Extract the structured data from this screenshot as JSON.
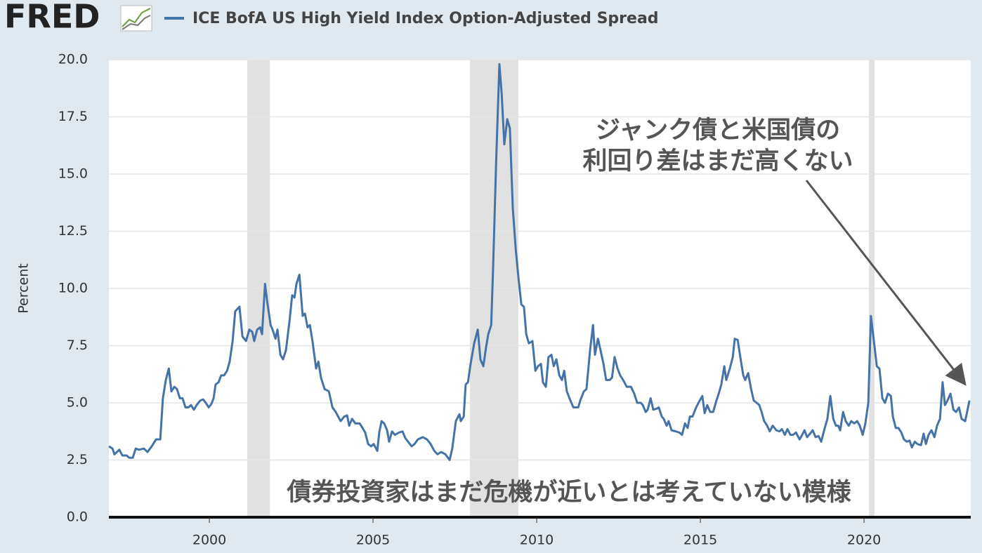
{
  "logo": "FRED",
  "chart_data": {
    "type": "line",
    "y_label": "Percent",
    "annotations": [
      "ジャンク債と米国債の",
      "利回り差はまだ高くない",
      "債券投資家はまだ危機が近いとは考えていない模様"
    ],
    "x": [
      1996.93,
      1997.04,
      1997.1,
      1997.25,
      1997.34,
      1997.47,
      1997.55,
      1997.66,
      1997.75,
      1997.85,
      1998.0,
      1998.11,
      1998.24,
      1998.37,
      1998.5,
      1998.58,
      1998.67,
      1998.76,
      1998.84,
      1998.93,
      1999.01,
      1999.1,
      1999.18,
      1999.27,
      1999.36,
      1999.44,
      1999.53,
      1999.61,
      1999.72,
      1999.81,
      1999.89,
      1999.98,
      2000.06,
      2000.13,
      2000.19,
      2000.28,
      2000.36,
      2000.45,
      2000.54,
      2000.62,
      2000.71,
      2000.79,
      2000.92,
      2001.01,
      2001.12,
      2001.22,
      2001.31,
      2001.37,
      2001.46,
      2001.55,
      2001.61,
      2001.7,
      2001.76,
      2001.87,
      2001.93,
      2002.02,
      2002.08,
      2002.17,
      2002.25,
      2002.34,
      2002.45,
      2002.53,
      2002.6,
      2002.66,
      2002.75,
      2002.85,
      2002.92,
      2003.0,
      2003.07,
      2003.15,
      2003.26,
      2003.33,
      2003.41,
      2003.52,
      2003.65,
      2003.76,
      2003.86,
      2004.01,
      2004.12,
      2004.21,
      2004.27,
      2004.36,
      2004.46,
      2004.59,
      2004.68,
      2004.76,
      2004.85,
      2004.94,
      2005.02,
      2005.13,
      2005.19,
      2005.26,
      2005.34,
      2005.43,
      2005.49,
      2005.58,
      2005.67,
      2005.79,
      2005.9,
      2005.99,
      2006.07,
      2006.18,
      2006.27,
      2006.37,
      2006.52,
      2006.65,
      2006.76,
      2006.87,
      2006.97,
      2007.08,
      2007.21,
      2007.34,
      2007.42,
      2007.53,
      2007.64,
      2007.68,
      2007.77,
      2007.83,
      2007.9,
      2007.98,
      2008.09,
      2008.2,
      2008.28,
      2008.37,
      2008.45,
      2008.52,
      2008.61,
      2008.67,
      2008.76,
      2008.86,
      2008.93,
      2009.01,
      2009.1,
      2009.18,
      2009.27,
      2009.36,
      2009.44,
      2009.53,
      2009.61,
      2009.68,
      2009.76,
      2009.87,
      2009.96,
      2010.04,
      2010.13,
      2010.19,
      2010.28,
      2010.36,
      2010.45,
      2010.52,
      2010.6,
      2010.69,
      2010.77,
      2010.84,
      2010.92,
      2011.03,
      2011.12,
      2011.27,
      2011.33,
      2011.44,
      2011.52,
      2011.63,
      2011.72,
      2011.78,
      2011.87,
      2011.95,
      2012.04,
      2012.12,
      2012.23,
      2012.3,
      2012.38,
      2012.47,
      2012.55,
      2012.64,
      2012.75,
      2012.88,
      2012.98,
      2013.07,
      2013.18,
      2013.24,
      2013.33,
      2013.39,
      2013.48,
      2013.56,
      2013.67,
      2013.73,
      2013.82,
      2013.88,
      2013.97,
      2014.03,
      2014.12,
      2014.25,
      2014.36,
      2014.44,
      2014.53,
      2014.61,
      2014.68,
      2014.76,
      2014.87,
      2014.98,
      2015.06,
      2015.13,
      2015.21,
      2015.3,
      2015.39,
      2015.47,
      2015.56,
      2015.64,
      2015.73,
      2015.79,
      2015.9,
      2015.99,
      2016.05,
      2016.14,
      2016.22,
      2016.31,
      2016.37,
      2016.46,
      2016.55,
      2016.63,
      2016.72,
      2016.8,
      2016.87,
      2016.95,
      2017.04,
      2017.12,
      2017.21,
      2017.32,
      2017.42,
      2017.49,
      2017.58,
      2017.66,
      2017.75,
      2017.83,
      2017.92,
      2018.03,
      2018.11,
      2018.18,
      2018.26,
      2018.35,
      2018.43,
      2018.52,
      2018.61,
      2018.69,
      2018.8,
      2018.88,
      2018.97,
      2019.06,
      2019.14,
      2019.21,
      2019.27,
      2019.36,
      2019.44,
      2019.53,
      2019.61,
      2019.7,
      2019.79,
      2019.87,
      2019.96,
      2020.04,
      2020.13,
      2020.21,
      2020.3,
      2020.39,
      2020.47,
      2020.56,
      2020.64,
      2020.73,
      2020.82,
      2020.88,
      2020.97,
      2021.05,
      2021.14,
      2021.22,
      2021.31,
      2021.39,
      2021.46,
      2021.55,
      2021.63,
      2021.74,
      2021.82,
      2021.89,
      2021.97,
      2022.06,
      2022.15,
      2022.23,
      2022.32,
      2022.4,
      2022.47,
      2022.55,
      2022.64,
      2022.73,
      2022.81,
      2022.9,
      2022.98,
      2023.09,
      2023.22
    ],
    "series": [
      {
        "name": "ICE BofA US High Yield Index Option-Adjusted Spread",
        "color": "#4572a7",
        "values": [
          3.1,
          3.0,
          2.75,
          2.95,
          2.7,
          2.7,
          2.6,
          2.6,
          3.0,
          2.95,
          3.0,
          2.85,
          3.1,
          3.4,
          3.4,
          5.2,
          6.0,
          6.5,
          5.5,
          5.7,
          5.6,
          5.2,
          5.2,
          4.8,
          4.8,
          4.9,
          4.7,
          4.9,
          5.1,
          5.15,
          5.0,
          4.8,
          4.95,
          5.2,
          5.8,
          5.9,
          6.2,
          6.2,
          6.4,
          6.8,
          7.7,
          9.0,
          9.2,
          7.9,
          7.7,
          8.2,
          8.1,
          7.7,
          8.2,
          8.3,
          8.0,
          10.2,
          9.5,
          8.4,
          8.2,
          7.8,
          8.2,
          7.1,
          6.9,
          7.3,
          8.6,
          9.7,
          9.6,
          10.2,
          10.6,
          8.8,
          8.9,
          8.3,
          8.4,
          7.7,
          6.5,
          6.8,
          6.1,
          5.6,
          5.5,
          4.8,
          4.6,
          4.2,
          4.4,
          4.45,
          4.0,
          4.3,
          4.1,
          4.1,
          3.9,
          3.7,
          3.2,
          3.1,
          3.2,
          2.9,
          3.7,
          4.2,
          4.1,
          3.8,
          3.3,
          3.75,
          3.6,
          3.7,
          3.75,
          3.45,
          3.3,
          3.1,
          3.2,
          3.4,
          3.5,
          3.4,
          3.2,
          2.9,
          2.75,
          2.85,
          2.75,
          2.5,
          3.0,
          4.2,
          4.5,
          4.2,
          4.4,
          5.8,
          5.9,
          6.7,
          7.6,
          8.2,
          6.9,
          6.6,
          7.4,
          8.0,
          8.4,
          11.0,
          15.5,
          19.8,
          18.5,
          16.3,
          17.4,
          17.0,
          13.5,
          11.7,
          10.5,
          9.3,
          9.2,
          8.0,
          7.6,
          7.7,
          6.4,
          6.6,
          6.7,
          5.9,
          5.7,
          7.0,
          7.1,
          6.6,
          6.9,
          6.2,
          6.0,
          6.4,
          5.5,
          5.1,
          4.8,
          4.8,
          5.1,
          5.5,
          5.6,
          7.3,
          8.4,
          7.1,
          7.8,
          7.3,
          6.7,
          6.0,
          6.0,
          6.1,
          7.0,
          6.5,
          6.2,
          6.0,
          5.7,
          5.7,
          5.4,
          5.0,
          5.0,
          4.9,
          4.6,
          4.7,
          5.2,
          4.7,
          4.75,
          4.8,
          4.4,
          4.3,
          4.0,
          4.2,
          3.8,
          3.75,
          3.7,
          3.6,
          4.1,
          3.9,
          4.4,
          4.4,
          4.8,
          5.1,
          5.3,
          4.55,
          4.9,
          4.6,
          4.6,
          5.0,
          5.4,
          5.8,
          6.6,
          6.0,
          6.5,
          7.0,
          7.8,
          7.75,
          7.0,
          6.2,
          6.0,
          6.3,
          5.6,
          5.1,
          5.0,
          4.9,
          4.6,
          4.2,
          4.0,
          3.75,
          4.0,
          3.8,
          3.75,
          3.85,
          3.6,
          3.85,
          3.6,
          3.6,
          3.7,
          3.4,
          3.6,
          3.8,
          3.5,
          3.65,
          3.8,
          3.5,
          3.55,
          3.3,
          3.9,
          4.3,
          5.3,
          4.3,
          4.0,
          4.0,
          3.8,
          4.6,
          4.2,
          4.0,
          4.2,
          4.1,
          4.2,
          4.0,
          3.6,
          4.1,
          5.0,
          8.8,
          7.7,
          6.6,
          6.5,
          5.2,
          5.0,
          5.4,
          5.3,
          4.4,
          3.9,
          3.9,
          3.7,
          3.4,
          3.3,
          3.35,
          3.05,
          3.3,
          3.2,
          3.15,
          3.65,
          3.2,
          3.6,
          3.8,
          3.5,
          4.0,
          4.3,
          5.9,
          4.9,
          5.1,
          5.4,
          4.7,
          4.6,
          4.8,
          4.3,
          4.2,
          5.1
        ]
      }
    ],
    "recessions": [
      [
        2001.16,
        2001.85
      ],
      [
        2007.96,
        2009.44
      ],
      [
        2020.15,
        2020.32
      ]
    ],
    "recession_color": "#e1e1e1",
    "xlim": [
      1996.93,
      2023.26
    ],
    "xticks": [
      2000,
      2005,
      2010,
      2015,
      2020
    ],
    "ylim": [
      0,
      20
    ],
    "yticks": [
      {
        "value": 0,
        "label": "0.0"
      },
      2.5,
      {
        "value": 5,
        "label": "5.0"
      },
      7.5,
      {
        "value": 10,
        "label": "10.0"
      },
      12.5,
      {
        "value": 15,
        "label": "15.0"
      },
      17.5,
      {
        "value": 20,
        "label": "20.0"
      }
    ],
    "grid": true
  }
}
